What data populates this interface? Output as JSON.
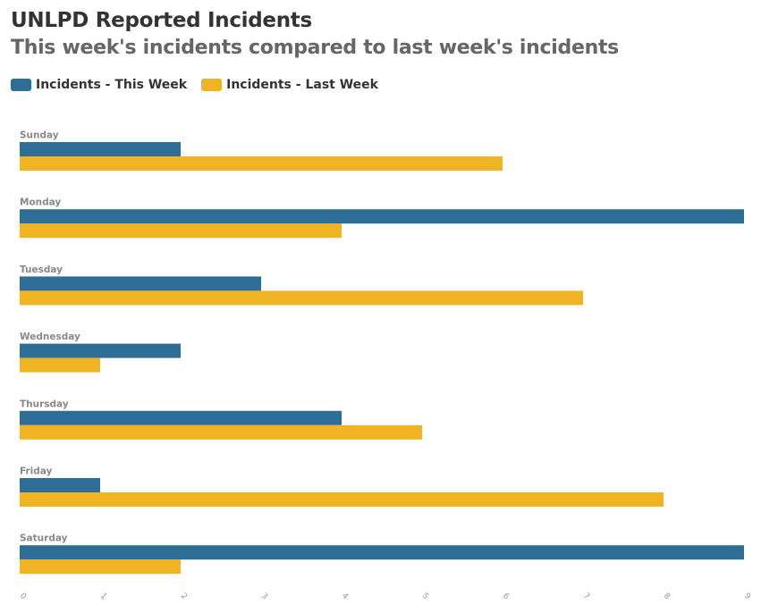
{
  "chart_data": {
    "type": "bar",
    "orientation": "horizontal",
    "title": "UNLPD Reported Incidents",
    "subtitle": "This week's incidents compared to last week's incidents",
    "categories": [
      "Sunday",
      "Monday",
      "Tuesday",
      "Wednesday",
      "Thursday",
      "Friday",
      "Saturday"
    ],
    "series": [
      {
        "name": "Incidents - This Week",
        "color": "#2e6e96",
        "values": [
          2,
          9,
          3,
          2,
          4,
          1,
          9
        ]
      },
      {
        "name": "Incidents - Last Week",
        "color": "#f0b323",
        "values": [
          6,
          4,
          7,
          1,
          5,
          8,
          2
        ]
      }
    ],
    "xticks": [
      "0",
      "1",
      "2",
      "3",
      "4",
      "5",
      "6",
      "7",
      "8",
      "9"
    ],
    "xlim": [
      0,
      9
    ],
    "xlabel": "",
    "ylabel": "",
    "legend_position": "top-left",
    "grid": false
  }
}
